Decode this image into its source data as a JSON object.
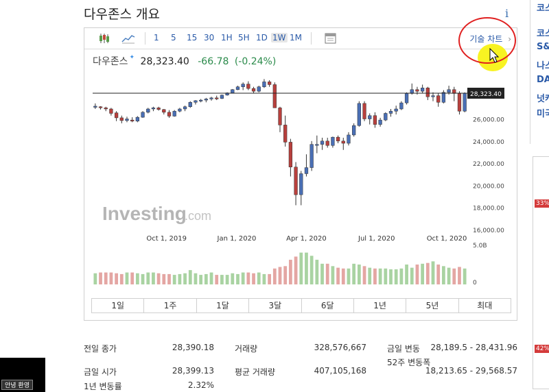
{
  "page": {
    "title": "다우존스 개요",
    "info_icon": "info-icon"
  },
  "toolbar": {
    "candle_icon": "candlestick-icon",
    "line_icon": "line-chart-icon",
    "intervals": [
      "1",
      "5",
      "15",
      "30",
      "1H",
      "5H",
      "1D",
      "1W",
      "1M"
    ],
    "active_interval": "1W",
    "settings_icon": "chart-settings-icon",
    "tech_chart_label": "기술 차트",
    "tech_chart_arrow": "›"
  },
  "quote": {
    "name": "다우존스",
    "price": "28,323.40",
    "change": "-66.78",
    "change_pct": "(-0.24%)"
  },
  "chart_data": {
    "type": "candlestick",
    "x_tick_labels": [
      "Oct 1, 2019",
      "Jan 1, 2020",
      "Apr 1, 2020",
      "Jul 1, 2020",
      "Oct 1, 2020"
    ],
    "y_tick_labels": [
      "26,000.00",
      "24,000.00",
      "22,000.00",
      "20,000.00",
      "18,000.00",
      "16,000.00"
    ],
    "current_price_label": "28,323.40",
    "volume_tick_labels": [
      "5.0B",
      "0"
    ],
    "watermark": "Investing",
    "watermark_suffix": ".com",
    "colors": {
      "up": "#4a6fb5",
      "down": "#b8403d",
      "vol_up": "#a9d3a2",
      "vol_down": "#e4a6a3",
      "current_line": "#222222"
    },
    "ylim": [
      16000,
      29500
    ],
    "candles": [
      [
        27050,
        27400,
        26900,
        27150
      ],
      [
        27100,
        27150,
        26850,
        27050
      ],
      [
        27000,
        27100,
        26700,
        26900
      ],
      [
        26900,
        27000,
        26300,
        26500
      ],
      [
        26550,
        26700,
        25800,
        26100
      ],
      [
        26100,
        26300,
        25600,
        25850
      ],
      [
        25850,
        26200,
        25700,
        26000
      ],
      [
        25900,
        26150,
        25700,
        25800
      ],
      [
        25800,
        26250,
        25700,
        26150
      ],
      [
        26150,
        26700,
        26100,
        26600
      ],
      [
        26600,
        27000,
        26500,
        26900
      ],
      [
        26900,
        27100,
        26700,
        27000
      ],
      [
        27000,
        27100,
        26750,
        26850
      ],
      [
        26850,
        26900,
        26400,
        26600
      ],
      [
        26600,
        26800,
        26100,
        26250
      ],
      [
        26250,
        26800,
        26200,
        26700
      ],
      [
        26700,
        27000,
        26600,
        26900
      ],
      [
        26900,
        27200,
        26700,
        27100
      ],
      [
        27100,
        27600,
        27000,
        27500
      ],
      [
        27500,
        27700,
        27300,
        27650
      ],
      [
        27650,
        27800,
        27500,
        27700
      ],
      [
        27700,
        27900,
        27500,
        27800
      ],
      [
        27800,
        28000,
        27650,
        27900
      ],
      [
        27900,
        28100,
        27700,
        27850
      ],
      [
        27850,
        28200,
        27800,
        28150
      ],
      [
        28150,
        28400,
        28100,
        28350
      ],
      [
        28350,
        28700,
        28300,
        28650
      ],
      [
        28650,
        29000,
        28600,
        28900
      ],
      [
        28900,
        29300,
        28600,
        29150
      ],
      [
        29150,
        29400,
        28600,
        28750
      ],
      [
        28750,
        28900,
        28300,
        28500
      ],
      [
        28500,
        29000,
        28400,
        28900
      ],
      [
        28900,
        29600,
        28800,
        29350
      ],
      [
        29350,
        29500,
        28900,
        29100
      ],
      [
        29100,
        29300,
        27000,
        27000
      ],
      [
        27000,
        27100,
        24800,
        25450
      ],
      [
        25450,
        26300,
        23500,
        23900
      ],
      [
        23900,
        24200,
        20800,
        21650
      ],
      [
        21650,
        22100,
        18200,
        19150
      ],
      [
        19150,
        21300,
        18200,
        21050
      ],
      [
        21050,
        22800,
        20800,
        21600
      ],
      [
        21600,
        24000,
        21300,
        23700
      ],
      [
        23700,
        24500,
        22900,
        23700
      ],
      [
        23700,
        24300,
        23200,
        24000
      ],
      [
        24000,
        24300,
        23400,
        23600
      ],
      [
        23600,
        24400,
        23400,
        24350
      ],
      [
        24350,
        24500,
        23800,
        24000
      ],
      [
        24000,
        24300,
        23200,
        23800
      ],
      [
        23800,
        24800,
        23600,
        24550
      ],
      [
        24550,
        25600,
        24400,
        25400
      ],
      [
        25400,
        27600,
        25300,
        27400
      ],
      [
        27400,
        27600,
        25800,
        26000
      ],
      [
        26000,
        26500,
        25500,
        26300
      ],
      [
        26300,
        26600,
        25200,
        25500
      ],
      [
        25500,
        26100,
        25300,
        25900
      ],
      [
        25900,
        26600,
        25800,
        26500
      ],
      [
        26500,
        26900,
        26200,
        26700
      ],
      [
        26700,
        27200,
        26400,
        26900
      ],
      [
        26900,
        27600,
        26800,
        27450
      ],
      [
        27450,
        28400,
        27300,
        28300
      ],
      [
        28300,
        29200,
        28200,
        28650
      ],
      [
        28650,
        28900,
        28200,
        28500
      ],
      [
        28500,
        29100,
        28300,
        28800
      ],
      [
        28800,
        28900,
        27700,
        28000
      ],
      [
        28000,
        28400,
        27600,
        28100
      ],
      [
        28100,
        28300,
        27100,
        27500
      ],
      [
        27500,
        28600,
        27400,
        28400
      ],
      [
        28400,
        29000,
        28200,
        28650
      ],
      [
        28650,
        28900,
        27600,
        28300
      ],
      [
        28300,
        28500,
        26400,
        26700
      ],
      [
        26700,
        28400,
        26600,
        28323.4
      ]
    ],
    "volume_scale_max": 5000000000,
    "volumes": [
      1.4,
      1.5,
      1.5,
      1.5,
      1.4,
      1.3,
      1.5,
      1.5,
      1.4,
      1.3,
      1.5,
      1.5,
      1.4,
      1.3,
      1.3,
      1.2,
      1.3,
      1.4,
      1.8,
      1.4,
      1.2,
      1.3,
      1.5,
      1.2,
      1.2,
      1.2,
      1.4,
      1.3,
      1.5,
      1.5,
      1.4,
      1.5,
      1.3,
      1.3,
      2.0,
      2.2,
      2.3,
      3.1,
      3.5,
      4.0,
      4.0,
      3.6,
      3.1,
      2.6,
      2.6,
      2.3,
      2.1,
      2.0,
      2.0,
      2.6,
      2.5,
      2.3,
      2.1,
      2.0,
      2.0,
      2.0,
      1.9,
      1.9,
      2.0,
      2.5,
      2.1,
      2.5,
      2.6,
      2.7,
      2.9,
      2.5,
      2.3,
      2.1,
      2.0,
      2.2,
      2.0
    ]
  },
  "ranges": [
    "1일",
    "1주",
    "1달",
    "3달",
    "6달",
    "1년",
    "5년",
    "최대"
  ],
  "stats": [
    {
      "label": "전일 종가",
      "value": "28,390.18"
    },
    {
      "label": "거래량",
      "value": "328,576,667"
    },
    {
      "label": "금일 변동",
      "value": "28,189.5 - 28,431.96"
    },
    {
      "label": "금일 시가",
      "value": "28,399.13"
    },
    {
      "label": "평균 거래량",
      "value": "407,105,168"
    },
    {
      "label": "52주 변동폭",
      "value": "18,213.65 - 29,568.57"
    },
    {
      "label": "1년 변동률",
      "value": "2.32%"
    }
  ],
  "right_strip": {
    "items": [
      "코스",
      "코스",
      "S&",
      "나스",
      "DA",
      "넛캐",
      "미국"
    ],
    "badges": [
      "33%",
      "42%"
    ]
  },
  "black_box": {
    "button_label": "안녕 환영"
  }
}
